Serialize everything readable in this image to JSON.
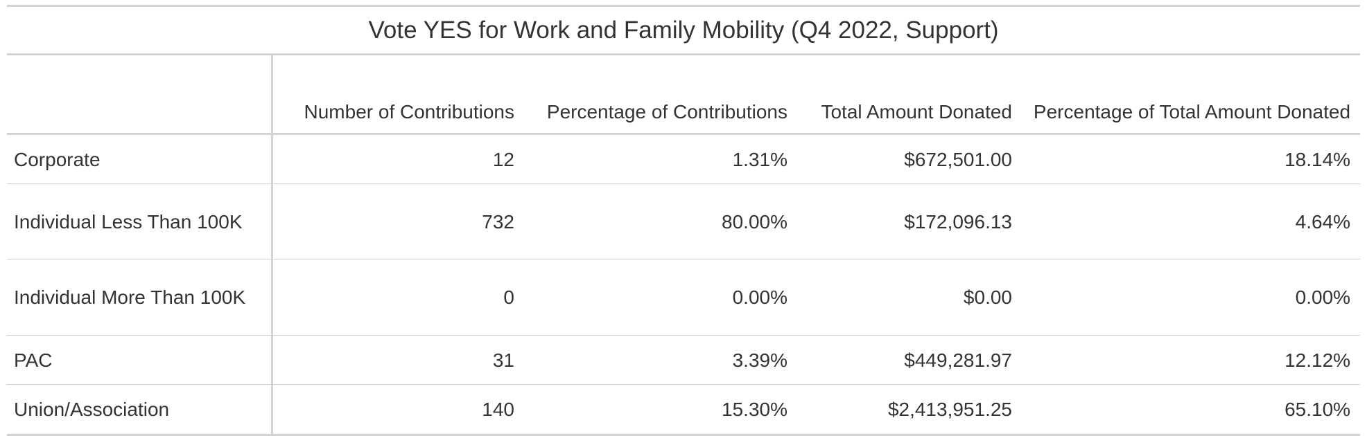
{
  "table": {
    "title": "Vote YES for Work and Family Mobility (Q4 2022, Support)",
    "columns": [
      "",
      "Number of Contributions",
      "Percentage of Contributions",
      "Total Amount Donated",
      "Percentage of Total Amount Donated"
    ],
    "rows": [
      {
        "category": "Corporate",
        "count": "12",
        "count_pct": "1.31%",
        "amount": "$672,501.00",
        "amount_pct": "18.14%"
      },
      {
        "category": "Individual Less Than 100K",
        "count": "732",
        "count_pct": "80.00%",
        "amount": "$172,096.13",
        "amount_pct": "4.64%"
      },
      {
        "category": "Individual More Than 100K",
        "count": "0",
        "count_pct": "0.00%",
        "amount": "$0.00",
        "amount_pct": "0.00%"
      },
      {
        "category": "PAC",
        "count": "31",
        "count_pct": "3.39%",
        "amount": "$449,281.97",
        "amount_pct": "12.12%"
      },
      {
        "category": "Union/Association",
        "count": "140",
        "count_pct": "15.30%",
        "amount": "$2,413,951.25",
        "amount_pct": "65.10%"
      }
    ],
    "border_color": "#d3d3d3",
    "text_color": "#333333"
  }
}
